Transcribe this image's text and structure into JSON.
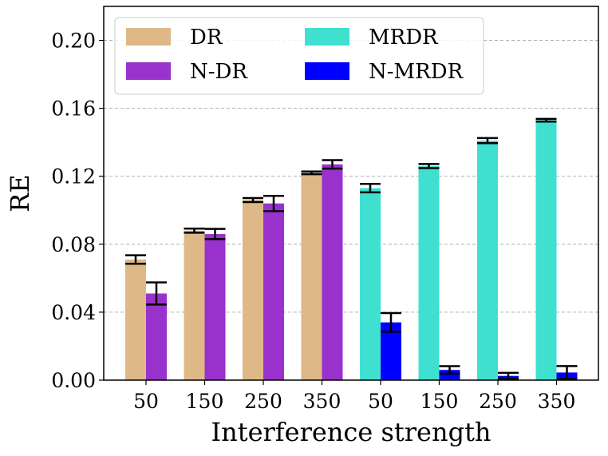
{
  "chart_data": {
    "type": "bar",
    "xlabel": "Interference strength",
    "ylabel": "RE",
    "ylim": [
      0,
      0.22
    ],
    "yticks": [
      "0.00",
      "0.04",
      "0.08",
      "0.12",
      "0.16",
      "0.20"
    ],
    "ytick_values": [
      0.0,
      0.04,
      0.08,
      0.12,
      0.16,
      0.2
    ],
    "grid": "horizontal dashed",
    "legend_placement": "top-left",
    "groups": [
      {
        "categories": [
          "50",
          "150",
          "250",
          "350"
        ],
        "series": [
          {
            "name": "DR",
            "color": "#deb887",
            "values": [
              0.071,
              0.088,
              0.106,
              0.122
            ],
            "errors": [
              0.0025,
              0.0012,
              0.0012,
              0.0008
            ]
          },
          {
            "name": "N-DR",
            "color": "#9932cc",
            "values": [
              0.051,
              0.086,
              0.104,
              0.127
            ],
            "errors": [
              0.0065,
              0.003,
              0.0045,
              0.0025
            ]
          }
        ]
      },
      {
        "categories": [
          "50",
          "150",
          "250",
          "350"
        ],
        "series": [
          {
            "name": "MRDR",
            "color": "#40e0d0",
            "values": [
              0.113,
              0.126,
              0.141,
              0.153
            ],
            "errors": [
              0.0025,
              0.0012,
              0.0015,
              0.0008
            ]
          },
          {
            "name": "N-MRDR",
            "color": "#0000ff",
            "values": [
              0.034,
              0.006,
              0.0025,
              0.0045
            ],
            "errors": [
              0.0055,
              0.0022,
              0.0018,
              0.0038
            ]
          }
        ]
      }
    ],
    "legend": [
      {
        "name": "DR",
        "color": "#deb887"
      },
      {
        "name": "N-DR",
        "color": "#9932cc"
      },
      {
        "name": "MRDR",
        "color": "#40e0d0"
      },
      {
        "name": "N-MRDR",
        "color": "#0000ff"
      }
    ]
  }
}
